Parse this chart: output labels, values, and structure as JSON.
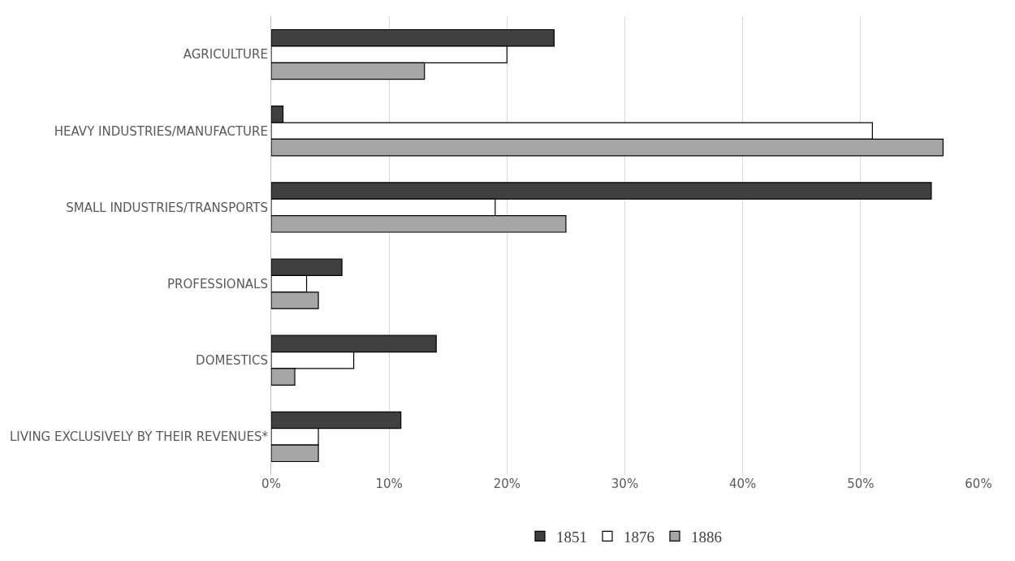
{
  "chart_data": {
    "type": "bar",
    "orientation": "horizontal",
    "categories": [
      "AGRICULTURE",
      "HEAVY INDUSTRIES/MANUFACTURE",
      "SMALL INDUSTRIES/TRANSPORTS",
      "PROFESSIONALS",
      "DOMESTICS",
      "LIVING EXCLUSIVELY BY THEIR REVENUES*"
    ],
    "series": [
      {
        "name": "1851",
        "color": "#404040",
        "values": [
          24,
          1,
          56,
          6,
          14,
          11
        ]
      },
      {
        "name": "1876",
        "color": "#ffffff",
        "values": [
          20,
          51,
          19,
          3,
          7,
          4
        ]
      },
      {
        "name": "1886",
        "color": "#a6a6a6",
        "values": [
          13,
          57,
          25,
          4,
          2,
          4
        ]
      }
    ],
    "xlim": [
      0,
      60
    ],
    "xticks": [
      {
        "value": 0,
        "label": "0%"
      },
      {
        "value": 10,
        "label": "10%"
      },
      {
        "value": 20,
        "label": "20%"
      },
      {
        "value": 30,
        "label": "30%"
      },
      {
        "value": 40,
        "label": "40%"
      },
      {
        "value": 50,
        "label": "50%"
      },
      {
        "value": 60,
        "label": "60%"
      }
    ],
    "grid": "x",
    "legend": "bottom"
  }
}
